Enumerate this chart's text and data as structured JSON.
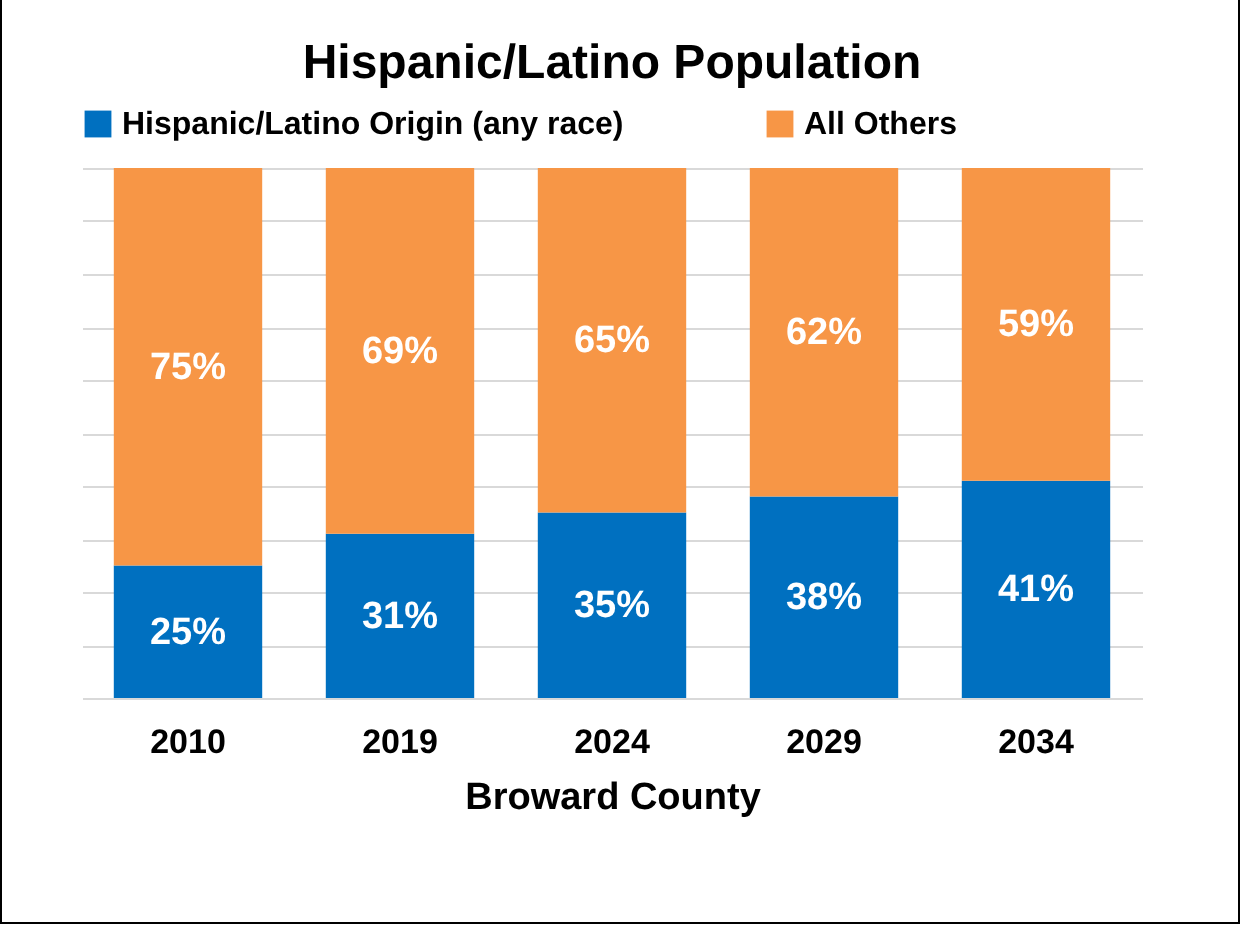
{
  "chart_data": {
    "type": "bar",
    "title": "Hispanic/Latino Population",
    "xlabel": "Broward County",
    "categories": [
      "2010",
      "2019",
      "2024",
      "2029",
      "2034"
    ],
    "series": [
      {
        "name": "Hispanic/Latino Origin (any race)",
        "color": "#0070c0",
        "values": [
          25,
          31,
          35,
          38,
          41
        ],
        "value_labels": [
          "25%",
          "31%",
          "35%",
          "38%",
          "41%"
        ]
      },
      {
        "name": "All Others",
        "color": "#f79646",
        "values": [
          75,
          69,
          65,
          62,
          59
        ],
        "value_labels": [
          "75%",
          "69%",
          "65%",
          "62%",
          "59%"
        ]
      }
    ],
    "stacked": true,
    "grid": "y",
    "legend": "top",
    "tick_labels": "x"
  }
}
